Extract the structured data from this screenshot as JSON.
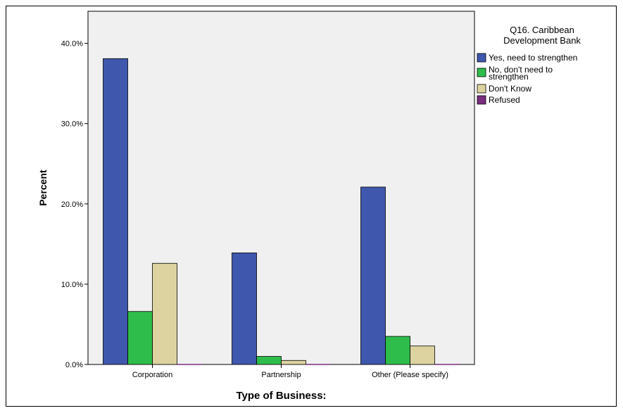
{
  "chart_data": {
    "type": "bar",
    "title": "",
    "xlabel": "Type of Business:",
    "ylabel": "Percent",
    "ylim": [
      0,
      44
    ],
    "yticks": [
      "0.0%",
      "10.0%",
      "20.0%",
      "30.0%",
      "40.0%"
    ],
    "categories": [
      "Corporation",
      "Partnership",
      "Other (Please specify)"
    ],
    "legend_title": "Q16. Caribbean Development Bank",
    "legend_title_lines": [
      "Q16. Caribbean",
      "Development Bank"
    ],
    "legend_position": "right",
    "grid": false,
    "series": [
      {
        "name": "Yes, need to strengthen",
        "name_lines": [
          "Yes, need to strengthen"
        ],
        "color": "#3F58AE",
        "values": [
          38.1,
          13.9,
          22.1
        ]
      },
      {
        "name": "No, don't need to strengthen",
        "name_lines": [
          "No, don't need to",
          "strengthen"
        ],
        "color": "#2EBD4B",
        "values": [
          6.6,
          1.0,
          3.5
        ]
      },
      {
        "name": "Don't Know",
        "name_lines": [
          "Don't Know"
        ],
        "color": "#DDD3A0",
        "values": [
          12.6,
          0.5,
          2.3
        ]
      },
      {
        "name": "Refused",
        "name_lines": [
          "Refused"
        ],
        "color": "#7B2D7F",
        "values": [
          0.0,
          0.0,
          0.0
        ]
      }
    ]
  }
}
